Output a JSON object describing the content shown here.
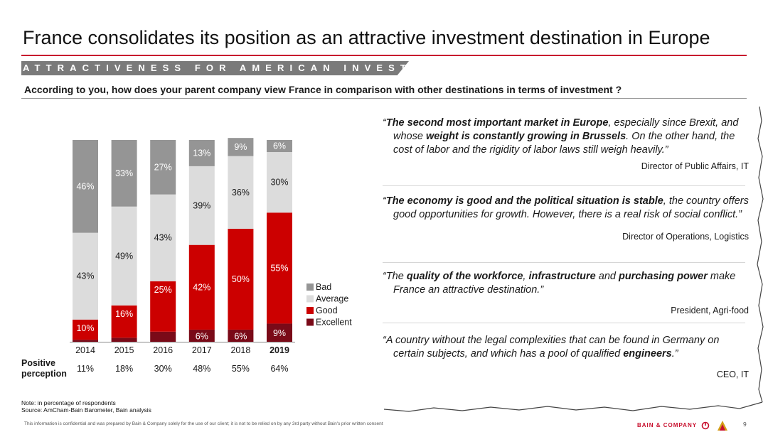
{
  "header": {
    "title": "France consolidates its position as an attractive investment destination in Europe",
    "banner": "ATTRACTIVENESS FOR AMERICAN INVESTORS",
    "question": "According to you, how does your parent company view France in comparison with other destinations in terms of investment ?"
  },
  "chart_data": {
    "type": "bar",
    "stacked": true,
    "categories": [
      "2014",
      "2015",
      "2016",
      "2017",
      "2018",
      "2019"
    ],
    "highlight_category": "2019",
    "ylim": [
      0,
      100
    ],
    "series": [
      {
        "name": "Excellent",
        "color": "#7a0a18",
        "values": [
          1,
          2,
          5,
          6,
          6,
          9
        ],
        "labels": [
          "",
          "",
          "",
          "6%",
          "6%",
          "9%"
        ]
      },
      {
        "name": "Good",
        "color": "#cc0000",
        "values": [
          10,
          16,
          25,
          42,
          50,
          55
        ],
        "labels": [
          "10%",
          "16%",
          "25%",
          "42%",
          "50%",
          "55%"
        ]
      },
      {
        "name": "Average",
        "color": "#dcdcdc",
        "values": [
          43,
          49,
          43,
          39,
          36,
          30
        ],
        "labels": [
          "43%",
          "49%",
          "43%",
          "39%",
          "36%",
          "30%"
        ]
      },
      {
        "name": "Bad",
        "color": "#959595",
        "values": [
          46,
          33,
          27,
          13,
          9,
          6
        ],
        "labels": [
          "46%",
          "33%",
          "27%",
          "13%",
          "9%",
          "6%"
        ]
      }
    ],
    "legend_order": [
      "Bad",
      "Average",
      "Good",
      "Excellent"
    ],
    "legend_position": "right",
    "positive_perception": {
      "label": "Positive perception",
      "values": [
        "11%",
        "18%",
        "30%",
        "48%",
        "55%",
        "64%"
      ]
    }
  },
  "quotes": [
    {
      "segments": [
        {
          "t": "“",
          "b": false
        },
        {
          "t": "The second most important market in Europe",
          "b": true
        },
        {
          "t": ", especially since Brexit, and whose ",
          "b": false
        },
        {
          "t": "weight is constantly growing in Brussels",
          "b": true
        },
        {
          "t": ". On the other hand, the cost of labor and the rigidity of labor laws still weigh heavily.”",
          "b": false
        }
      ],
      "author": "Director of Public Affairs, IT"
    },
    {
      "segments": [
        {
          "t": "“",
          "b": false
        },
        {
          "t": "The economy is good and the political situation is stable",
          "b": true
        },
        {
          "t": ", the country offers good opportunities for growth. However, there is a real risk of social conflict.”",
          "b": false
        }
      ],
      "author": "Director of Operations, Logistics"
    },
    {
      "segments": [
        {
          "t": "“The ",
          "b": false
        },
        {
          "t": "quality of the workforce",
          "b": true
        },
        {
          "t": ", ",
          "b": false
        },
        {
          "t": "infrastructure",
          "b": true
        },
        {
          "t": " and ",
          "b": false
        },
        {
          "t": "purchasing power",
          "b": true
        },
        {
          "t": " make France an attractive destination.”",
          "b": false
        }
      ],
      "author": "President, Agri-food"
    },
    {
      "segments": [
        {
          "t": "“A country without the legal complexities that can be found in Germany on certain subjects, and which has a pool of qualified ",
          "b": false
        },
        {
          "t": "engineers",
          "b": true
        },
        {
          "t": ".”",
          "b": false
        }
      ],
      "author": "CEO, IT"
    }
  ],
  "notes": {
    "note": "Note: in percentage of respondents",
    "source": "Source: AmCham-Bain Barometer, Bain analysis"
  },
  "footer": {
    "confidential": "This information is confidential and was prepared by Bain & Company solely for the use of our client; it is not to be relied on by any 3rd party without Bain's prior written consent",
    "brand": "BAIN & COMPANY",
    "page": "9"
  },
  "colors": {
    "accent": "#c8102e",
    "banner": "#7a7a7a"
  }
}
